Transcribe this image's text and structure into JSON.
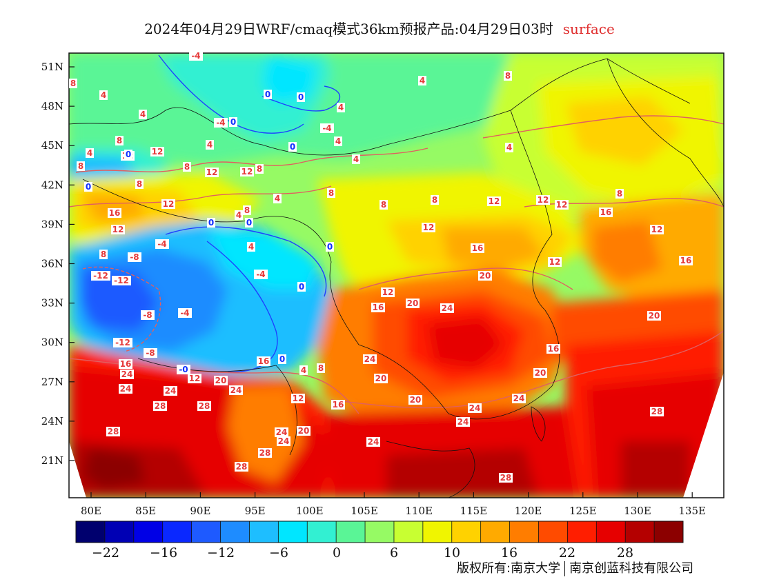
{
  "title": {
    "main": "2024年04月29日WRF/cmaq模式36km预报产品:04月29日03时",
    "variable": "surface"
  },
  "map": {
    "lon_ticks": [
      "80E",
      "85E",
      "90E",
      "95E",
      "100E",
      "105E",
      "110E",
      "115E",
      "120E",
      "125E",
      "130E",
      "135E"
    ],
    "lat_ticks": [
      "51N",
      "48N",
      "45N",
      "42N",
      "39N",
      "36N",
      "33N",
      "30N",
      "27N",
      "24N",
      "21N"
    ],
    "contour_labels": [
      {
        "text": "-4"
      },
      {
        "text": "8"
      },
      {
        "text": "4"
      },
      {
        "text": "4"
      },
      {
        "text": "0"
      },
      {
        "text": "0"
      },
      {
        "text": "4"
      },
      {
        "text": "-4"
      },
      {
        "text": "0"
      },
      {
        "text": "-4"
      },
      {
        "text": "4"
      },
      {
        "text": "4"
      },
      {
        "text": "0"
      },
      {
        "text": "4"
      },
      {
        "text": "8"
      },
      {
        "text": "8"
      },
      {
        "text": "12"
      },
      {
        "text": "8"
      },
      {
        "text": "12"
      },
      {
        "text": "12"
      },
      {
        "text": "8"
      },
      {
        "text": "0"
      },
      {
        "text": "12"
      },
      {
        "text": "4"
      },
      {
        "text": "0"
      },
      {
        "text": "4"
      },
      {
        "text": "8"
      },
      {
        "text": "12"
      },
      {
        "text": "8"
      },
      {
        "text": "0"
      },
      {
        "text": "8"
      },
      {
        "text": "4"
      },
      {
        "text": "16"
      },
      {
        "text": "12"
      },
      {
        "text": "12"
      },
      {
        "text": "4"
      },
      {
        "text": "8"
      },
      {
        "text": "0"
      },
      {
        "text": "8"
      },
      {
        "text": "8"
      },
      {
        "text": "12"
      },
      {
        "text": "12"
      },
      {
        "text": "12"
      },
      {
        "text": "16"
      },
      {
        "text": "8"
      },
      {
        "text": "4"
      },
      {
        "text": "-4"
      },
      {
        "text": "4"
      },
      {
        "text": "0"
      },
      {
        "text": "12"
      },
      {
        "text": "16"
      },
      {
        "text": "8"
      },
      {
        "text": "-8"
      },
      {
        "text": "-4"
      },
      {
        "text": "16"
      },
      {
        "text": "12"
      },
      {
        "text": "-12"
      },
      {
        "text": "-12"
      },
      {
        "text": "0"
      },
      {
        "text": "12"
      },
      {
        "text": "20"
      },
      {
        "text": "16"
      },
      {
        "text": "-8"
      },
      {
        "text": "-4"
      },
      {
        "text": "16"
      },
      {
        "text": "20"
      },
      {
        "text": "24"
      },
      {
        "text": "20"
      },
      {
        "text": "-12"
      },
      {
        "text": "-8"
      },
      {
        "text": "0"
      },
      {
        "text": "16"
      },
      {
        "text": "16"
      },
      {
        "text": "24"
      },
      {
        "text": "4"
      },
      {
        "text": "8"
      },
      {
        "text": "24"
      },
      {
        "text": "-0"
      },
      {
        "text": "12"
      },
      {
        "text": "20"
      },
      {
        "text": "24"
      },
      {
        "text": "20"
      },
      {
        "text": "20"
      },
      {
        "text": "24"
      },
      {
        "text": "24"
      },
      {
        "text": "28"
      },
      {
        "text": "28"
      },
      {
        "text": "12"
      },
      {
        "text": "16"
      },
      {
        "text": "20"
      },
      {
        "text": "24"
      },
      {
        "text": "24"
      },
      {
        "text": "28"
      },
      {
        "text": "24"
      },
      {
        "text": "20"
      },
      {
        "text": "24"
      },
      {
        "text": "24"
      },
      {
        "text": "28"
      },
      {
        "text": "24"
      },
      {
        "text": "28"
      },
      {
        "text": "28"
      },
      {
        "text": "28"
      }
    ]
  },
  "colorbar": {
    "colors": [
      "#00006e",
      "#0000b4",
      "#0000e6",
      "#0a28ff",
      "#1e5aff",
      "#1e8cff",
      "#1ebeff",
      "#00e6ff",
      "#32f0d2",
      "#5af596",
      "#96fa64",
      "#c8ff32",
      "#f0f500",
      "#ffd200",
      "#ffaa00",
      "#ff7d00",
      "#ff4b00",
      "#ff1e00",
      "#e60000",
      "#b40000",
      "#8c0000"
    ],
    "labels": [
      "−22",
      "−16",
      "−12",
      "−6",
      "0",
      "6",
      "10",
      "16",
      "22",
      "28"
    ]
  },
  "copyright": {
    "left": "版权所有:南京大学",
    "right": "南京创蓝科技有限公司"
  }
}
